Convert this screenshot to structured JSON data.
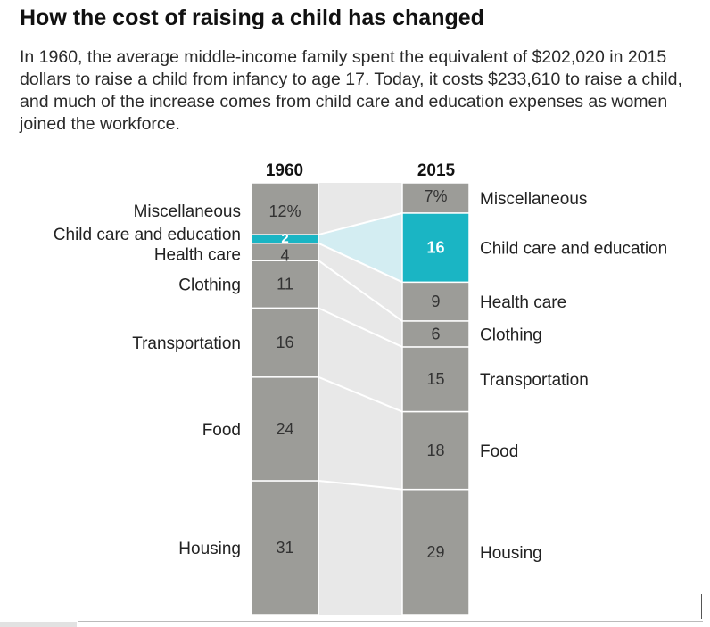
{
  "title": "How the cost of raising a child has changed",
  "subtitle": "In 1960, the average middle-income family spent the equivalent of $202,020 in 2015 dollars to raise a child from infancy to age 17. Today, it costs $233,610 to raise a child, and much of the increase comes from child care and education expenses as women joined the workforce.",
  "colors": {
    "bar": "#9c9c98",
    "highlight": "#1ab5c4",
    "highlight_band": "#d3edf2",
    "band": "#e8e8e8",
    "divider": "#ffffff"
  },
  "chart_data": {
    "type": "bar",
    "stacked": true,
    "normalized_percent": true,
    "categories": [
      "1960",
      "2015"
    ],
    "highlight_category": "Child care and education",
    "series": [
      {
        "name": "Housing",
        "values": [
          31,
          29
        ]
      },
      {
        "name": "Food",
        "values": [
          24,
          18
        ]
      },
      {
        "name": "Transportation",
        "values": [
          16,
          15
        ]
      },
      {
        "name": "Clothing",
        "values": [
          11,
          6
        ]
      },
      {
        "name": "Health care",
        "values": [
          4,
          9
        ]
      },
      {
        "name": "Child care and education",
        "values": [
          2,
          16
        ]
      },
      {
        "name": "Miscellaneous",
        "values": [
          12,
          7
        ]
      }
    ],
    "value_labels": [
      [
        "31",
        "29"
      ],
      [
        "24",
        "18"
      ],
      [
        "16",
        "15"
      ],
      [
        "11",
        "6"
      ],
      [
        "4",
        "9"
      ],
      [
        "2",
        "16"
      ],
      [
        "12%",
        "7%"
      ]
    ],
    "ylim": [
      0,
      100
    ]
  }
}
